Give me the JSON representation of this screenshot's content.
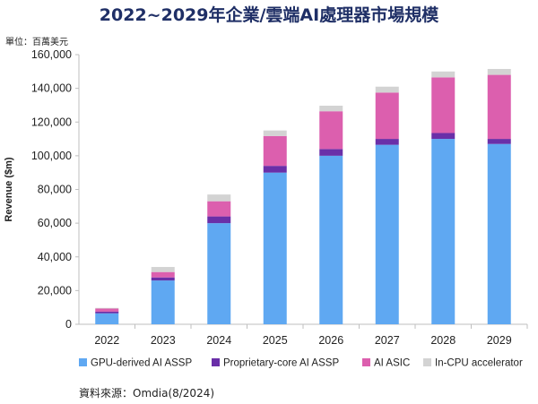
{
  "page_title": "2022~2029年企業/雲端AI處理器市場規模",
  "unit_note": "單位：百萬美元",
  "source_note": "資料來源：Omdia(8/2024)",
  "chart_data": {
    "type": "bar",
    "stacked": true,
    "categories": [
      "2022",
      "2023",
      "2024",
      "2025",
      "2026",
      "2027",
      "2028",
      "2029"
    ],
    "ylabel": "Revenue ($m)",
    "xlabel": "",
    "ylim": [
      0,
      160000
    ],
    "yticks": [
      0,
      20000,
      40000,
      60000,
      80000,
      100000,
      120000,
      140000,
      160000
    ],
    "ytick_labels": [
      "0",
      "20,000",
      "40,000",
      "60,000",
      "80,000",
      "100,000",
      "120,000",
      "140,000",
      "160,000"
    ],
    "grid": false,
    "legend_position": "bottom",
    "series": [
      {
        "name": "GPU-derived AI ASSP",
        "color": "#5fa8f2",
        "values": [
          6500,
          26000,
          60000,
          90000,
          100000,
          106500,
          110000,
          107000
        ]
      },
      {
        "name": "Proprietary-core AI ASSP",
        "color": "#6a2fa8",
        "values": [
          1000,
          1800,
          4000,
          4000,
          4000,
          3500,
          3500,
          3000
        ]
      },
      {
        "name": "AI ASIC",
        "color": "#dc5fae",
        "values": [
          1800,
          3200,
          9000,
          17700,
          22400,
          27500,
          33000,
          38000
        ]
      },
      {
        "name": "In-CPU accelerator",
        "color": "#d3d3d3",
        "values": [
          400,
          3000,
          4000,
          3300,
          3300,
          3500,
          3500,
          3500
        ]
      }
    ]
  }
}
